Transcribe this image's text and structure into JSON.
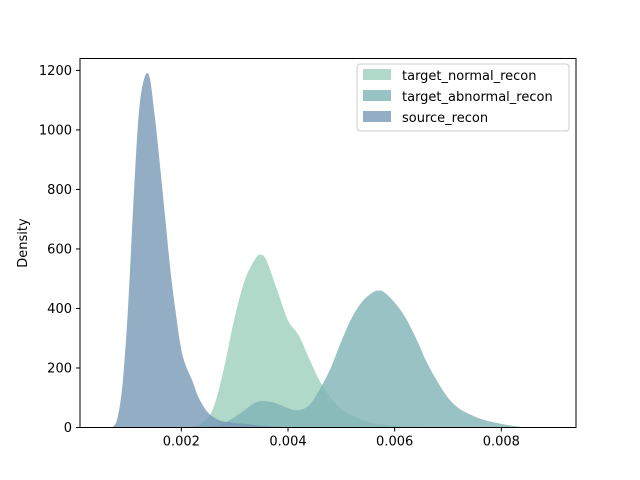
{
  "chart_data": {
    "type": "area",
    "title": "",
    "xlabel": "",
    "ylabel": "Density",
    "xlim": [
      0.0001,
      0.0094
    ],
    "ylim": [
      0,
      1240
    ],
    "xticks": [
      0.002,
      0.004,
      0.006,
      0.008
    ],
    "xtick_labels": [
      "0.002",
      "0.004",
      "0.006",
      "0.008"
    ],
    "yticks": [
      0,
      200,
      400,
      600,
      800,
      1000,
      1200
    ],
    "ytick_labels": [
      "0",
      "200",
      "400",
      "600",
      "800",
      "1000",
      "1200"
    ],
    "grid": false,
    "legend_position": "top-right",
    "series": [
      {
        "name": "target_normal_recon",
        "color": "#9ecfbd",
        "opacity": 0.8,
        "x": [
          0.002,
          0.0022,
          0.0024,
          0.0026,
          0.0028,
          0.003,
          0.0032,
          0.0034,
          0.0035,
          0.0036,
          0.0038,
          0.004,
          0.0042,
          0.0044,
          0.0046,
          0.0048,
          0.005,
          0.0052,
          0.0054,
          0.0056,
          0.0058,
          0.006,
          0.0062,
          0.0064,
          0.0066,
          0.0068,
          0.007
        ],
        "y": [
          0,
          3,
          15,
          65,
          200,
          370,
          500,
          570,
          580,
          560,
          460,
          360,
          310,
          230,
          155,
          100,
          60,
          40,
          25,
          15,
          10,
          6,
          3,
          2,
          1,
          0,
          0
        ]
      },
      {
        "name": "target_abnormal_recon",
        "color": "#7fb3b5",
        "opacity": 0.8,
        "x": [
          0.0024,
          0.0026,
          0.0028,
          0.003,
          0.0032,
          0.0034,
          0.0036,
          0.0038,
          0.004,
          0.0042,
          0.0044,
          0.0046,
          0.0048,
          0.005,
          0.0052,
          0.0054,
          0.0056,
          0.0057,
          0.0058,
          0.006,
          0.0062,
          0.0064,
          0.0066,
          0.0068,
          0.007,
          0.0072,
          0.0074,
          0.0076,
          0.0078,
          0.008,
          0.0082,
          0.0084,
          0.0087
        ],
        "y": [
          0,
          5,
          15,
          35,
          60,
          85,
          88,
          80,
          65,
          58,
          75,
          130,
          200,
          290,
          370,
          425,
          455,
          460,
          455,
          420,
          370,
          300,
          220,
          155,
          100,
          65,
          45,
          30,
          20,
          12,
          6,
          2,
          0
        ]
      },
      {
        "name": "source_recon",
        "color": "#7799b5",
        "opacity": 0.8,
        "x": [
          0.0007,
          0.0008,
          0.0009,
          0.001,
          0.0011,
          0.0012,
          0.0013,
          0.0014,
          0.0015,
          0.0016,
          0.0017,
          0.0018,
          0.0019,
          0.002,
          0.0021,
          0.0022,
          0.0023,
          0.0024,
          0.0025,
          0.0026,
          0.0027,
          0.0028,
          0.0029,
          0.003,
          0.0032,
          0.0034,
          0.0036,
          0.0038,
          0.004,
          0.0042
        ],
        "y": [
          0,
          30,
          150,
          400,
          750,
          1050,
          1170,
          1180,
          1050,
          880,
          700,
          520,
          380,
          260,
          200,
          160,
          110,
          75,
          50,
          35,
          25,
          20,
          18,
          15,
          12,
          8,
          5,
          3,
          1,
          0
        ]
      }
    ]
  }
}
